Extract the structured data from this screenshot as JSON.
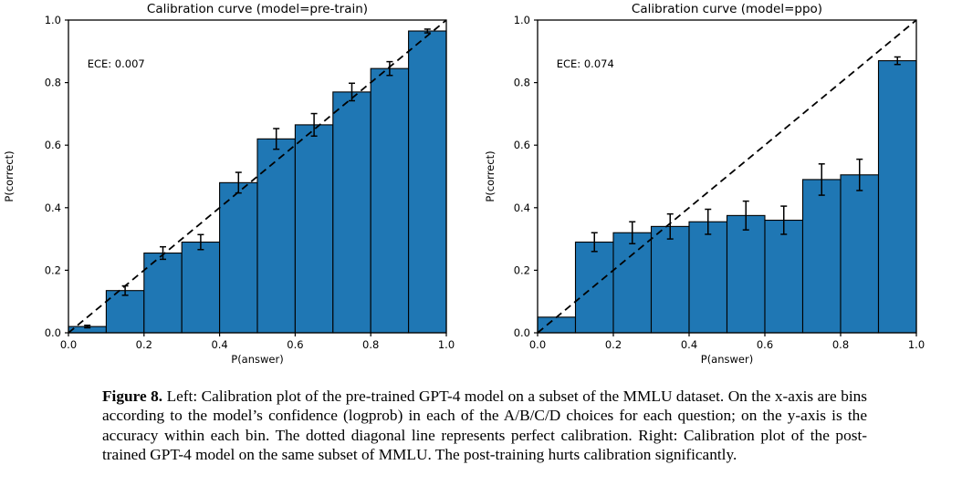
{
  "figure": {
    "caption_label": "Figure 8.",
    "caption_text": "Left: Calibration plot of the pre-trained GPT-4 model on a subset of the MMLU dataset. On the x-axis are bins according to the model’s confidence (logprob) in each of the A/B/C/D choices for each question; on the y-axis is the accuracy within each bin. The dotted diagonal line represents perfect calibration. Right: Calibration plot of the post-trained GPT-4 model on the same subset of MMLU. The post-training hurts calibration significantly."
  },
  "chart_data": [
    {
      "type": "bar",
      "title": "Calibration curve (model=pre-train)",
      "annotation": "ECE: 0.007",
      "xlabel": "P(answer)",
      "ylabel": "P(correct)",
      "xlim": [
        0.0,
        1.0
      ],
      "ylim": [
        0.0,
        1.0
      ],
      "xticks": [
        0.0,
        0.2,
        0.4,
        0.6,
        0.8,
        1.0
      ],
      "yticks": [
        0.0,
        0.2,
        0.4,
        0.6,
        0.8,
        1.0
      ],
      "grid": false,
      "diagonal_reference": true,
      "bin_edges": [
        0.0,
        0.1,
        0.2,
        0.3,
        0.4,
        0.5,
        0.6,
        0.7,
        0.8,
        0.9,
        1.0
      ],
      "values": [
        0.02,
        0.135,
        0.255,
        0.29,
        0.48,
        0.62,
        0.665,
        0.77,
        0.845,
        0.965
      ],
      "errors": [
        0.004,
        0.015,
        0.02,
        0.024,
        0.033,
        0.033,
        0.036,
        0.028,
        0.022,
        0.006
      ],
      "bar_color": "#1f77b4",
      "bar_edge_color": "#000000"
    },
    {
      "type": "bar",
      "title": "Calibration curve (model=ppo)",
      "annotation": "ECE: 0.074",
      "xlabel": "P(answer)",
      "ylabel": "P(correct)",
      "xlim": [
        0.0,
        1.0
      ],
      "ylim": [
        0.0,
        1.0
      ],
      "xticks": [
        0.0,
        0.2,
        0.4,
        0.6,
        0.8,
        1.0
      ],
      "yticks": [
        0.0,
        0.2,
        0.4,
        0.6,
        0.8,
        1.0
      ],
      "grid": false,
      "diagonal_reference": true,
      "bin_edges": [
        0.0,
        0.1,
        0.2,
        0.3,
        0.4,
        0.5,
        0.6,
        0.7,
        0.8,
        0.9,
        1.0
      ],
      "values": [
        0.05,
        0.29,
        0.32,
        0.34,
        0.355,
        0.375,
        0.36,
        0.49,
        0.505,
        0.87
      ],
      "errors": [
        0,
        0.03,
        0.035,
        0.04,
        0.04,
        0.046,
        0.045,
        0.05,
        0.05,
        0.012
      ],
      "bar_color": "#1f77b4",
      "bar_edge_color": "#000000"
    }
  ]
}
